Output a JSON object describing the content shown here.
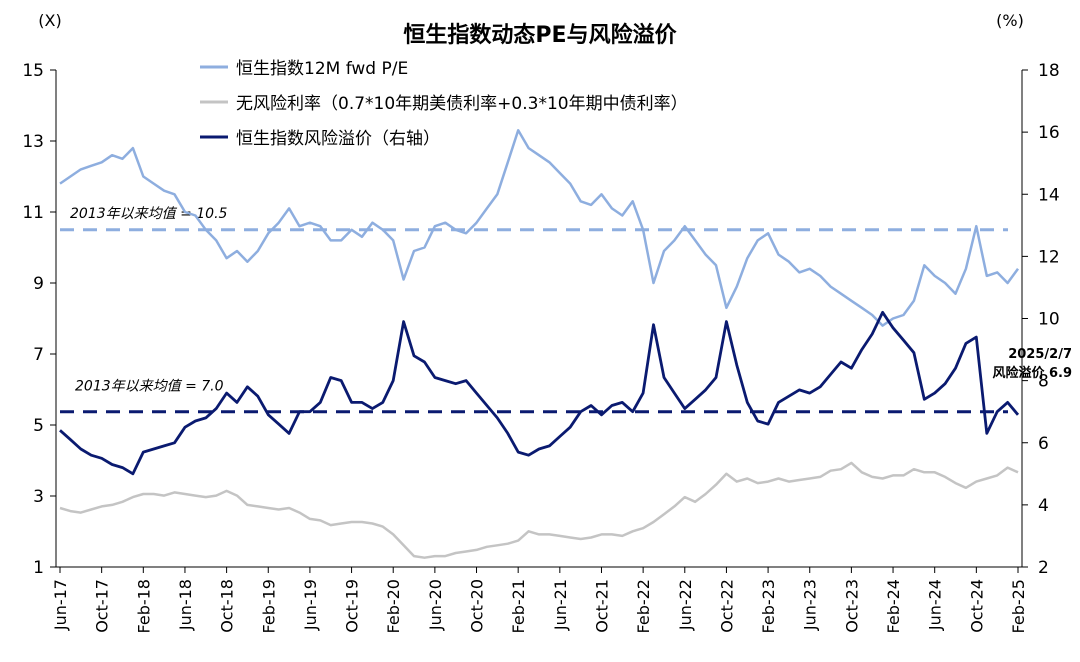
{
  "chart_data": {
    "type": "line",
    "title": "恒生指数动态PE与风险溢价",
    "left_unit": "(X)",
    "right_unit": "(%)",
    "left_ylim": [
      1,
      15
    ],
    "left_ticks": [
      1,
      3,
      5,
      7,
      9,
      11,
      13,
      15
    ],
    "right_ylim": [
      2,
      18
    ],
    "right_ticks": [
      2,
      4,
      6,
      8,
      10,
      12,
      14,
      16,
      18
    ],
    "x_tick_labels": [
      "Jun-17",
      "Oct-17",
      "Feb-18",
      "Jun-18",
      "Oct-18",
      "Feb-19",
      "Jun-19",
      "Oct-19",
      "Feb-20",
      "Jun-20",
      "Oct-20",
      "Feb-21",
      "Jun-21",
      "Oct-21",
      "Feb-22",
      "Jun-22",
      "Oct-22",
      "Feb-23",
      "Jun-23",
      "Oct-23",
      "Feb-24",
      "Jun-24",
      "Oct-24",
      "Feb-25"
    ],
    "x_range": [
      "2017-06",
      "2025-02"
    ],
    "grid": false,
    "legend_position": "top",
    "colors": {
      "pe": "#8eaedf",
      "riskfree": "#c4c4c4",
      "erp": "#0a1a70"
    },
    "series": [
      {
        "name": "恒生指数12M fwd P/E",
        "axis": "left",
        "dates": [
          "2017-06",
          "2017-07",
          "2017-08",
          "2017-09",
          "2017-10",
          "2017-11",
          "2017-12",
          "2018-01",
          "2018-02",
          "2018-03",
          "2018-04",
          "2018-05",
          "2018-06",
          "2018-07",
          "2018-08",
          "2018-09",
          "2018-10",
          "2018-11",
          "2018-12",
          "2019-01",
          "2019-02",
          "2019-03",
          "2019-04",
          "2019-05",
          "2019-06",
          "2019-07",
          "2019-08",
          "2019-09",
          "2019-10",
          "2019-11",
          "2019-12",
          "2020-01",
          "2020-02",
          "2020-03",
          "2020-04",
          "2020-05",
          "2020-06",
          "2020-07",
          "2020-08",
          "2020-09",
          "2020-10",
          "2020-11",
          "2020-12",
          "2021-01",
          "2021-02",
          "2021-03",
          "2021-04",
          "2021-05",
          "2021-06",
          "2021-07",
          "2021-08",
          "2021-09",
          "2021-10",
          "2021-11",
          "2021-12",
          "2022-01",
          "2022-02",
          "2022-03",
          "2022-04",
          "2022-05",
          "2022-06",
          "2022-07",
          "2022-08",
          "2022-09",
          "2022-10",
          "2022-11",
          "2022-12",
          "2023-01",
          "2023-02",
          "2023-03",
          "2023-04",
          "2023-05",
          "2023-06",
          "2023-07",
          "2023-08",
          "2023-09",
          "2023-10",
          "2023-11",
          "2023-12",
          "2024-01",
          "2024-02",
          "2024-03",
          "2024-04",
          "2024-05",
          "2024-06",
          "2024-07",
          "2024-08",
          "2024-09",
          "2024-10",
          "2024-11",
          "2024-12",
          "2025-01",
          "2025-02"
        ],
        "values": [
          11.8,
          12.0,
          12.2,
          12.3,
          12.4,
          12.6,
          12.5,
          12.8,
          12.0,
          11.8,
          11.6,
          11.5,
          11.0,
          10.9,
          10.5,
          10.2,
          9.7,
          9.9,
          9.6,
          9.9,
          10.4,
          10.7,
          11.1,
          10.6,
          10.7,
          10.6,
          10.2,
          10.2,
          10.5,
          10.3,
          10.7,
          10.5,
          10.2,
          9.1,
          9.9,
          10.0,
          10.6,
          10.7,
          10.5,
          10.4,
          10.7,
          11.1,
          11.5,
          12.4,
          13.3,
          12.8,
          12.6,
          12.4,
          12.1,
          11.8,
          11.3,
          11.2,
          11.5,
          11.1,
          10.9,
          11.3,
          10.5,
          9.0,
          9.9,
          10.2,
          10.6,
          10.2,
          9.8,
          9.5,
          8.3,
          8.9,
          9.7,
          10.2,
          10.4,
          9.8,
          9.6,
          9.3,
          9.4,
          9.2,
          8.9,
          8.7,
          8.5,
          8.3,
          8.1,
          7.8,
          8.0,
          8.1,
          8.5,
          9.5,
          9.2,
          9.0,
          8.7,
          9.4,
          10.6,
          9.2,
          9.3,
          9.0,
          9.4
        ]
      },
      {
        "name": "无风险利率（0.7*10年期美债利率+0.3*10年期中债利率）",
        "axis": "right",
        "dates": [
          "2017-06",
          "2017-07",
          "2017-08",
          "2017-09",
          "2017-10",
          "2017-11",
          "2017-12",
          "2018-01",
          "2018-02",
          "2018-03",
          "2018-04",
          "2018-05",
          "2018-06",
          "2018-07",
          "2018-08",
          "2018-09",
          "2018-10",
          "2018-11",
          "2018-12",
          "2019-01",
          "2019-02",
          "2019-03",
          "2019-04",
          "2019-05",
          "2019-06",
          "2019-07",
          "2019-08",
          "2019-09",
          "2019-10",
          "2019-11",
          "2019-12",
          "2020-01",
          "2020-02",
          "2020-03",
          "2020-04",
          "2020-05",
          "2020-06",
          "2020-07",
          "2020-08",
          "2020-09",
          "2020-10",
          "2020-11",
          "2020-12",
          "2021-01",
          "2021-02",
          "2021-03",
          "2021-04",
          "2021-05",
          "2021-06",
          "2021-07",
          "2021-08",
          "2021-09",
          "2021-10",
          "2021-11",
          "2021-12",
          "2022-01",
          "2022-02",
          "2022-03",
          "2022-04",
          "2022-05",
          "2022-06",
          "2022-07",
          "2022-08",
          "2022-09",
          "2022-10",
          "2022-11",
          "2022-12",
          "2023-01",
          "2023-02",
          "2023-03",
          "2023-04",
          "2023-05",
          "2023-06",
          "2023-07",
          "2023-08",
          "2023-09",
          "2023-10",
          "2023-11",
          "2023-12",
          "2024-01",
          "2024-02",
          "2024-03",
          "2024-04",
          "2024-05",
          "2024-06",
          "2024-07",
          "2024-08",
          "2024-09",
          "2024-10",
          "2024-11",
          "2024-12",
          "2025-01",
          "2025-02"
        ],
        "values": [
          3.9,
          3.8,
          3.75,
          3.85,
          3.95,
          4.0,
          4.1,
          4.25,
          4.35,
          4.35,
          4.3,
          4.4,
          4.35,
          4.3,
          4.25,
          4.3,
          4.45,
          4.3,
          4.0,
          3.95,
          3.9,
          3.85,
          3.9,
          3.75,
          3.55,
          3.5,
          3.35,
          3.4,
          3.45,
          3.45,
          3.4,
          3.3,
          3.05,
          2.7,
          2.35,
          2.3,
          2.35,
          2.35,
          2.45,
          2.5,
          2.55,
          2.65,
          2.7,
          2.75,
          2.85,
          3.15,
          3.05,
          3.05,
          3.0,
          2.95,
          2.9,
          2.95,
          3.05,
          3.05,
          3.0,
          3.15,
          3.25,
          3.45,
          3.7,
          3.95,
          4.25,
          4.1,
          4.35,
          4.65,
          5.0,
          4.75,
          4.85,
          4.7,
          4.75,
          4.85,
          4.75,
          4.8,
          4.85,
          4.9,
          5.1,
          5.15,
          5.35,
          5.05,
          4.9,
          4.85,
          4.95,
          4.95,
          5.15,
          5.05,
          5.05,
          4.9,
          4.7,
          4.55,
          4.75,
          4.85,
          4.95,
          5.2,
          5.05
        ]
      },
      {
        "name": "恒生指数风险溢价（右轴）",
        "axis": "right",
        "dates": [
          "2017-06",
          "2017-07",
          "2017-08",
          "2017-09",
          "2017-10",
          "2017-11",
          "2017-12",
          "2018-01",
          "2018-02",
          "2018-03",
          "2018-04",
          "2018-05",
          "2018-06",
          "2018-07",
          "2018-08",
          "2018-09",
          "2018-10",
          "2018-11",
          "2018-12",
          "2019-01",
          "2019-02",
          "2019-03",
          "2019-04",
          "2019-05",
          "2019-06",
          "2019-07",
          "2019-08",
          "2019-09",
          "2019-10",
          "2019-11",
          "2019-12",
          "2020-01",
          "2020-02",
          "2020-03",
          "2020-04",
          "2020-05",
          "2020-06",
          "2020-07",
          "2020-08",
          "2020-09",
          "2020-10",
          "2020-11",
          "2020-12",
          "2021-01",
          "2021-02",
          "2021-03",
          "2021-04",
          "2021-05",
          "2021-06",
          "2021-07",
          "2021-08",
          "2021-09",
          "2021-10",
          "2021-11",
          "2021-12",
          "2022-01",
          "2022-02",
          "2022-03",
          "2022-04",
          "2022-05",
          "2022-06",
          "2022-07",
          "2022-08",
          "2022-09",
          "2022-10",
          "2022-11",
          "2022-12",
          "2023-01",
          "2023-02",
          "2023-03",
          "2023-04",
          "2023-05",
          "2023-06",
          "2023-07",
          "2023-08",
          "2023-09",
          "2023-10",
          "2023-11",
          "2023-12",
          "2024-01",
          "2024-02",
          "2024-03",
          "2024-04",
          "2024-05",
          "2024-06",
          "2024-07",
          "2024-08",
          "2024-09",
          "2024-10",
          "2024-11",
          "2024-12",
          "2025-01",
          "2025-02"
        ],
        "values": [
          6.4,
          6.1,
          5.8,
          5.6,
          5.5,
          5.3,
          5.2,
          5.0,
          5.7,
          5.8,
          5.9,
          6.0,
          6.5,
          6.7,
          6.8,
          7.1,
          7.6,
          7.3,
          7.8,
          7.5,
          6.9,
          6.6,
          6.3,
          7.0,
          7.0,
          7.3,
          8.1,
          8.0,
          7.3,
          7.3,
          7.1,
          7.3,
          8.0,
          9.9,
          8.8,
          8.6,
          8.1,
          8.0,
          7.9,
          8.0,
          7.6,
          7.2,
          6.8,
          6.3,
          5.7,
          5.6,
          5.8,
          5.9,
          6.2,
          6.5,
          7.0,
          7.2,
          6.9,
          7.2,
          7.3,
          7.0,
          7.6,
          9.8,
          8.1,
          7.6,
          7.1,
          7.4,
          7.7,
          8.1,
          9.9,
          8.5,
          7.3,
          6.7,
          6.6,
          7.3,
          7.5,
          7.7,
          7.6,
          7.8,
          8.2,
          8.6,
          8.4,
          9.0,
          9.5,
          10.2,
          9.7,
          9.3,
          8.9,
          7.4,
          7.6,
          7.9,
          8.4,
          9.2,
          9.4,
          6.3,
          7.0,
          7.3,
          6.9
        ]
      }
    ],
    "reference_lines": [
      {
        "label": "2013年以来均值 = 10.5",
        "axis": "left",
        "value": 10.5,
        "color": "#8eaedf"
      },
      {
        "label": "2013年以来均值 = 7.0",
        "axis": "right",
        "value": 7.0,
        "color": "#0a1a70"
      }
    ],
    "annotation": {
      "date_label": "2025/2/7",
      "value_label": "风险溢价 6.9",
      "date": "2025-02",
      "value": 6.9
    }
  }
}
